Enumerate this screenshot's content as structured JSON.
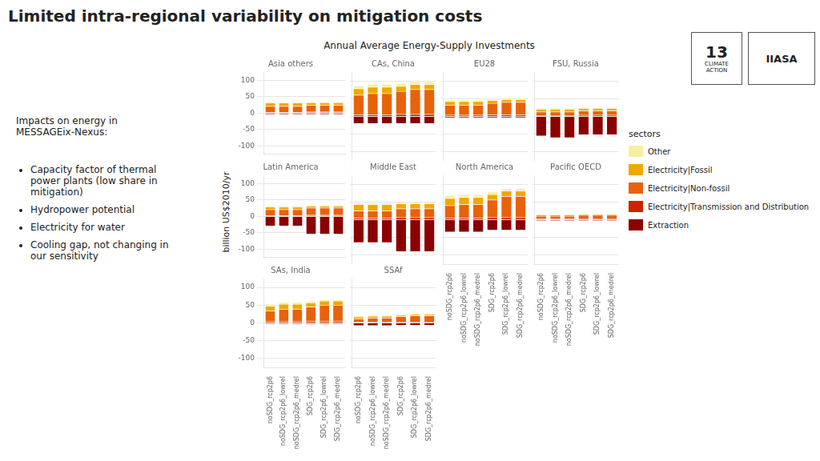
{
  "title": "Limited intra-regional variability on mitigation costs",
  "subtitle": "Annual Average Energy-Supply Investments",
  "ylabel": "billion US$2010/yr",
  "annotations": [
    "Impacts on energy in\nMESSAGEix-Nexus:",
    "Capacity factor of thermal\npower plants (low share in\nmitigation)",
    "Hydropower potential",
    "Electricity for water",
    "Cooling gap, not changing in\nour sensitivity",
    "13",
    "CLIMATE\nACTION",
    "IIASA"
  ],
  "legend": "right",
  "legend_title": "sectors",
  "chart_data": [
    {
      "type": "bar",
      "stacked": true,
      "title": "Asia others",
      "grid": true,
      "tick_labels": "y",
      "categories": [
        "noSDG_rcp2p6",
        "noSDG_rcp2p6_lowrel",
        "noSDG_rcp2p6_medrel",
        "SDG_rcp2p6",
        "SDG_rcp2p6_lowrel",
        "SDG_rcp2p6_medrel"
      ],
      "ylim": [
        -125,
        125
      ],
      "yticks": [
        -100,
        -50,
        0,
        50,
        100
      ],
      "series": [
        {
          "name": "Extraction",
          "color": "#8B0000",
          "values": [
            -4,
            -4,
            -4,
            -4,
            -4,
            -4
          ]
        },
        {
          "name": "Electricity|Transmission and Distribution",
          "color": "#CC2200",
          "values": [
            3,
            3,
            3,
            4,
            4,
            4
          ]
        },
        {
          "name": "Electricity|Non-fossil",
          "color": "#E8620A",
          "values": [
            18,
            18,
            18,
            20,
            20,
            20
          ]
        },
        {
          "name": "Electricity|Fossil",
          "color": "#F0A800",
          "values": [
            10,
            10,
            10,
            8,
            8,
            8
          ]
        },
        {
          "name": "Other",
          "color": "#F5F0A0",
          "values": [
            4,
            4,
            4,
            3,
            3,
            3
          ]
        }
      ]
    },
    {
      "type": "bar",
      "stacked": true,
      "title": "CAs, China",
      "grid": true,
      "tick_labels": false,
      "categories": [
        "noSDG_rcp2p6",
        "noSDG_rcp2p6_lowrel",
        "noSDG_rcp2p6_medrel",
        "SDG_rcp2p6",
        "SDG_rcp2p6_lowrel",
        "SDG_rcp2p6_medrel"
      ],
      "ylim": [
        -125,
        125
      ],
      "yticks": [
        -100,
        -50,
        0,
        50,
        100
      ],
      "series": [
        {
          "name": "Extraction",
          "color": "#8B0000",
          "values": [
            -20,
            -20,
            -20,
            -20,
            -20,
            -20
          ]
        },
        {
          "name": "Electricity|Transmission and Distribution",
          "color": "#CC2200",
          "values": [
            5,
            5,
            5,
            6,
            6,
            6
          ]
        },
        {
          "name": "Electricity|Non-fossil",
          "color": "#E8620A",
          "values": [
            55,
            60,
            60,
            65,
            70,
            70
          ]
        },
        {
          "name": "Electricity|Fossil",
          "color": "#F0A800",
          "values": [
            18,
            18,
            18,
            14,
            14,
            14
          ]
        },
        {
          "name": "Other",
          "color": "#F5F0A0",
          "values": [
            8,
            8,
            8,
            8,
            8,
            8
          ]
        }
      ]
    },
    {
      "type": "bar",
      "stacked": true,
      "title": "EU28",
      "grid": true,
      "tick_labels": false,
      "categories": [
        "noSDG_rcp2p6",
        "noSDG_rcp2p6_lowrel",
        "noSDG_rcp2p6_medrel",
        "SDG_rcp2p6",
        "SDG_rcp2p6_lowrel",
        "SDG_rcp2p6_medrel"
      ],
      "ylim": [
        -125,
        125
      ],
      "yticks": [
        -100,
        -50,
        0,
        50,
        100
      ],
      "series": [
        {
          "name": "Extraction",
          "color": "#8B0000",
          "values": [
            -4,
            -4,
            -4,
            -4,
            -4,
            -4
          ]
        },
        {
          "name": "Electricity|Transmission and Distribution",
          "color": "#CC2200",
          "values": [
            4,
            4,
            4,
            5,
            5,
            5
          ]
        },
        {
          "name": "Electricity|Non-fossil",
          "color": "#E8620A",
          "values": [
            28,
            28,
            28,
            32,
            35,
            35
          ]
        },
        {
          "name": "Electricity|Fossil",
          "color": "#F0A800",
          "values": [
            10,
            10,
            10,
            8,
            8,
            8
          ]
        },
        {
          "name": "Other",
          "color": "#F5F0A0",
          "values": [
            5,
            5,
            5,
            4,
            4,
            4
          ]
        }
      ]
    },
    {
      "type": "bar",
      "stacked": true,
      "title": "FSU, Russia",
      "grid": true,
      "tick_labels": false,
      "categories": [
        "noSDG_rcp2p6",
        "noSDG_rcp2p6_lowrel",
        "noSDG_rcp2p6_medrel",
        "SDG_rcp2p6",
        "SDG_rcp2p6_lowrel",
        "SDG_rcp2p6_medrel"
      ],
      "ylim": [
        -125,
        125
      ],
      "yticks": [
        -100,
        -50,
        0,
        50,
        100
      ],
      "series": [
        {
          "name": "Extraction",
          "color": "#8B0000",
          "values": [
            -55,
            -60,
            -60,
            -52,
            -52,
            -52
          ]
        },
        {
          "name": "Electricity|Transmission and Distribution",
          "color": "#CC2200",
          "values": [
            3,
            3,
            3,
            4,
            4,
            4
          ]
        },
        {
          "name": "Electricity|Non-fossil",
          "color": "#E8620A",
          "values": [
            10,
            10,
            10,
            12,
            12,
            12
          ]
        },
        {
          "name": "Electricity|Fossil",
          "color": "#F0A800",
          "values": [
            8,
            8,
            8,
            7,
            7,
            7
          ]
        },
        {
          "name": "Other",
          "color": "#F5F0A0",
          "values": [
            3,
            3,
            3,
            3,
            3,
            3
          ]
        }
      ]
    },
    {
      "type": "bar",
      "stacked": true,
      "title": "Latin America",
      "grid": true,
      "tick_labels": "y",
      "categories": [
        "noSDG_rcp2p6",
        "noSDG_rcp2p6_lowrel",
        "noSDG_rcp2p6_medrel",
        "SDG_rcp2p6",
        "SDG_rcp2p6_lowrel",
        "SDG_rcp2p6_medrel"
      ],
      "ylim": [
        -125,
        125
      ],
      "yticks": [
        -100,
        -50,
        0,
        50,
        100
      ],
      "series": [
        {
          "name": "Extraction",
          "color": "#8B0000",
          "values": [
            -30,
            -30,
            -30,
            -55,
            -55,
            -55
          ]
        },
        {
          "name": "Electricity|Transmission and Distribution",
          "color": "#CC2200",
          "values": [
            3,
            3,
            3,
            4,
            4,
            4
          ]
        },
        {
          "name": "Electricity|Non-fossil",
          "color": "#E8620A",
          "values": [
            18,
            18,
            18,
            22,
            22,
            22
          ]
        },
        {
          "name": "Electricity|Fossil",
          "color": "#F0A800",
          "values": [
            8,
            8,
            8,
            6,
            6,
            6
          ]
        },
        {
          "name": "Other",
          "color": "#F5F0A0",
          "values": [
            4,
            4,
            4,
            3,
            3,
            3
          ]
        }
      ]
    },
    {
      "type": "bar",
      "stacked": true,
      "title": "Middle East",
      "grid": true,
      "tick_labels": false,
      "categories": [
        "noSDG_rcp2p6",
        "noSDG_rcp2p6_lowrel",
        "noSDG_rcp2p6_medrel",
        "SDG_rcp2p6",
        "SDG_rcp2p6_lowrel",
        "SDG_rcp2p6_medrel"
      ],
      "ylim": [
        -125,
        125
      ],
      "yticks": [
        -100,
        -50,
        0,
        50,
        100
      ],
      "series": [
        {
          "name": "Extraction",
          "color": "#8B0000",
          "values": [
            -65,
            -65,
            -65,
            -90,
            -90,
            -90
          ]
        },
        {
          "name": "Electricity|Transmission and Distribution",
          "color": "#CC2200",
          "values": [
            5,
            5,
            5,
            6,
            6,
            6
          ]
        },
        {
          "name": "Electricity|Non-fossil",
          "color": "#E8620A",
          "values": [
            20,
            20,
            20,
            25,
            25,
            25
          ]
        },
        {
          "name": "Electricity|Fossil",
          "color": "#F0A800",
          "values": [
            18,
            18,
            18,
            14,
            14,
            14
          ]
        },
        {
          "name": "Other",
          "color": "#F5F0A0",
          "values": [
            5,
            5,
            5,
            4,
            4,
            4
          ]
        }
      ]
    },
    {
      "type": "bar",
      "stacked": true,
      "title": "North America",
      "grid": true,
      "tick_labels": "x",
      "categories": [
        "noSDG_rcp2p6",
        "noSDG_rcp2p6_lowrel",
        "noSDG_rcp2p6_medrel",
        "SDG_rcp2p6",
        "SDG_rcp2p6_lowrel",
        "SDG_rcp2p6_medrel"
      ],
      "ylim": [
        -125,
        125
      ],
      "yticks": [
        -100,
        -50,
        0,
        50,
        100
      ],
      "series": [
        {
          "name": "Extraction",
          "color": "#8B0000",
          "values": [
            -35,
            -35,
            -35,
            -30,
            -30,
            -30
          ]
        },
        {
          "name": "Electricity|Transmission and Distribution",
          "color": "#CC2200",
          "values": [
            5,
            5,
            5,
            6,
            6,
            6
          ]
        },
        {
          "name": "Electricity|Non-fossil",
          "color": "#E8620A",
          "values": [
            35,
            38,
            38,
            50,
            60,
            60
          ]
        },
        {
          "name": "Electricity|Fossil",
          "color": "#F0A800",
          "values": [
            20,
            20,
            20,
            15,
            15,
            15
          ]
        },
        {
          "name": "Other",
          "color": "#F5F0A0",
          "values": [
            8,
            8,
            8,
            7,
            7,
            7
          ]
        }
      ]
    },
    {
      "type": "bar",
      "stacked": true,
      "title": "Pacific OECD",
      "grid": true,
      "tick_labels": "x",
      "categories": [
        "noSDG_rcp2p6",
        "noSDG_rcp2p6_lowrel",
        "noSDG_rcp2p6_medrel",
        "SDG_rcp2p6",
        "SDG_rcp2p6_lowrel",
        "SDG_rcp2p6_medrel"
      ],
      "ylim": [
        -125,
        125
      ],
      "yticks": [
        -100,
        -50,
        0,
        50,
        100
      ],
      "series": [
        {
          "name": "Extraction",
          "color": "#8B0000",
          "values": [
            -3,
            -3,
            -3,
            -3,
            -3,
            -3
          ]
        },
        {
          "name": "Electricity|Transmission and Distribution",
          "color": "#CC2200",
          "values": [
            2,
            2,
            2,
            3,
            3,
            3
          ]
        },
        {
          "name": "Electricity|Non-fossil",
          "color": "#E8620A",
          "values": [
            8,
            8,
            8,
            10,
            10,
            10
          ]
        },
        {
          "name": "Electricity|Fossil",
          "color": "#F0A800",
          "values": [
            4,
            4,
            4,
            3,
            3,
            3
          ]
        },
        {
          "name": "Other",
          "color": "#F5F0A0",
          "values": [
            2,
            2,
            2,
            2,
            2,
            2
          ]
        }
      ]
    },
    {
      "type": "bar",
      "stacked": true,
      "title": "SAs, India",
      "grid": true,
      "tick_labels": true,
      "categories": [
        "noSDG_rcp2p6",
        "noSDG_rcp2p6_lowrel",
        "noSDG_rcp2p6_medrel",
        "SDG_rcp2p6",
        "SDG_rcp2p6_lowrel",
        "SDG_rcp2p6_medrel"
      ],
      "ylim": [
        -125,
        125
      ],
      "yticks": [
        -100,
        -50,
        0,
        50,
        100
      ],
      "series": [
        {
          "name": "Extraction",
          "color": "#8B0000",
          "values": [
            -3,
            -3,
            -3,
            -3,
            -3,
            -3
          ]
        },
        {
          "name": "Electricity|Transmission and Distribution",
          "color": "#CC2200",
          "values": [
            4,
            4,
            4,
            5,
            5,
            5
          ]
        },
        {
          "name": "Electricity|Non-fossil",
          "color": "#E8620A",
          "values": [
            30,
            35,
            35,
            40,
            45,
            45
          ]
        },
        {
          "name": "Electricity|Fossil",
          "color": "#F0A800",
          "values": [
            14,
            14,
            14,
            12,
            12,
            12
          ]
        },
        {
          "name": "Other",
          "color": "#F5F0A0",
          "values": [
            5,
            5,
            5,
            4,
            4,
            4
          ]
        }
      ]
    },
    {
      "type": "bar",
      "stacked": true,
      "title": "SSAf",
      "grid": true,
      "tick_labels": "x",
      "categories": [
        "noSDG_rcp2p6",
        "noSDG_rcp2p6_lowrel",
        "noSDG_rcp2p6_medrel",
        "SDG_rcp2p6",
        "SDG_rcp2p6_lowrel",
        "SDG_rcp2p6_medrel"
      ],
      "ylim": [
        -125,
        125
      ],
      "yticks": [
        -100,
        -50,
        0,
        50,
        100
      ],
      "series": [
        {
          "name": "Extraction",
          "color": "#8B0000",
          "values": [
            -8,
            -8,
            -8,
            -7,
            -7,
            -7
          ]
        },
        {
          "name": "Electricity|Transmission and Distribution",
          "color": "#CC2200",
          "values": [
            2,
            2,
            2,
            3,
            3,
            3
          ]
        },
        {
          "name": "Electricity|Non-fossil",
          "color": "#E8620A",
          "values": [
            10,
            12,
            12,
            15,
            17,
            17
          ]
        },
        {
          "name": "Electricity|Fossil",
          "color": "#F0A800",
          "values": [
            5,
            5,
            5,
            4,
            4,
            4
          ]
        },
        {
          "name": "Other",
          "color": "#F5F0A0",
          "values": [
            3,
            3,
            3,
            3,
            3,
            3
          ]
        }
      ]
    }
  ]
}
